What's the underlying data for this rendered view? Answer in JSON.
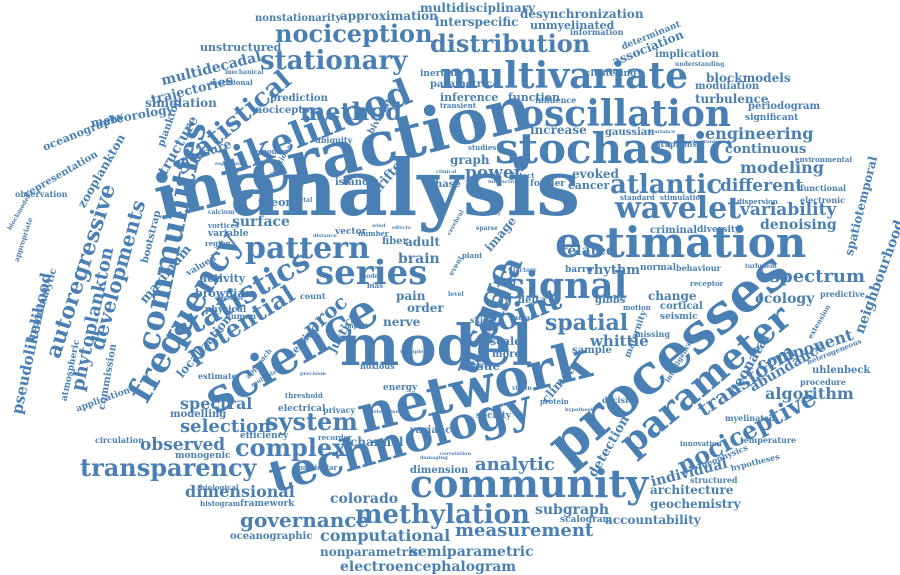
{
  "color": "#4a7fb3",
  "words": [
    {
      "id": "analysis",
      "text": "analysis"
    },
    {
      "id": "interaction",
      "text": "interaction"
    },
    {
      "id": "model",
      "text": "model"
    },
    {
      "id": "network",
      "text": "network"
    },
    {
      "id": "processes",
      "text": "processes"
    },
    {
      "id": "estimation",
      "text": "estimation"
    },
    {
      "id": "stochastic",
      "text": "stochastic"
    },
    {
      "id": "science",
      "text": "science"
    },
    {
      "id": "technology",
      "text": "technology"
    },
    {
      "id": "community",
      "text": "community"
    },
    {
      "id": "multivariate",
      "text": "multivariate"
    },
    {
      "id": "oscillation",
      "text": "oscillation"
    },
    {
      "id": "likelihood",
      "text": "likelihood"
    },
    {
      "id": "frequency",
      "text": "frequency"
    },
    {
      "id": "communities",
      "text": "communities"
    },
    {
      "id": "parameter",
      "text": "parameter"
    },
    {
      "id": "signal",
      "text": "signal"
    },
    {
      "id": "series",
      "text": "series"
    },
    {
      "id": "usage",
      "text": "usage"
    },
    {
      "id": "data",
      "text": "data"
    },
    {
      "id": "point",
      "text": "point"
    },
    {
      "id": "wavelet",
      "text": "wavelet"
    },
    {
      "id": "atlantic",
      "text": "atlantic"
    },
    {
      "id": "pattern",
      "text": "pattern"
    },
    {
      "id": "statistical",
      "text": "statistical"
    },
    {
      "id": "statistics",
      "text": "statistics"
    },
    {
      "id": "potential",
      "text": "potential"
    },
    {
      "id": "nociception",
      "text": "nociception"
    },
    {
      "id": "distribution",
      "text": "distribution"
    },
    {
      "id": "stationary",
      "text": "stationary"
    },
    {
      "id": "method",
      "text": "method"
    },
    {
      "id": "methylation",
      "text": "methylation"
    },
    {
      "id": "transparency",
      "text": "transparency"
    },
    {
      "id": "complex",
      "text": "complex"
    },
    {
      "id": "system",
      "text": "system"
    },
    {
      "id": "governance",
      "text": "governance"
    },
    {
      "id": "measurement",
      "text": "measurement"
    },
    {
      "id": "nociceptive",
      "text": "nociceptive"
    },
    {
      "id": "transform",
      "text": "transform"
    },
    {
      "id": "spatial",
      "text": "spatial"
    },
    {
      "id": "spectrum",
      "text": "spectrum"
    },
    {
      "id": "variability",
      "text": "variability"
    },
    {
      "id": "different",
      "text": "different"
    },
    {
      "id": "modeling",
      "text": "modeling"
    },
    {
      "id": "engineering",
      "text": "engineering"
    },
    {
      "id": "algorithm",
      "text": "algorithm"
    },
    {
      "id": "analytic",
      "text": "analytic"
    },
    {
      "id": "autoregressive",
      "text": "autoregressive"
    },
    {
      "id": "developments",
      "text": "developments"
    },
    {
      "id": "phytoplankton",
      "text": "phytoplankton"
    },
    {
      "id": "pseudolikelihood",
      "text": "pseudolikelihood"
    },
    {
      "id": "selection",
      "text": "selection"
    },
    {
      "id": "observed",
      "text": "observed"
    },
    {
      "id": "spectral",
      "text": "spectral"
    },
    {
      "id": "dimensional",
      "text": "dimensional"
    },
    {
      "id": "computational",
      "text": "computational"
    },
    {
      "id": "semiparametric",
      "text": "semiparametric"
    },
    {
      "id": "nonparametric",
      "text": "nonparametric"
    },
    {
      "id": "electroencephalogram",
      "text": "electroencephalogram"
    },
    {
      "id": "colorado",
      "text": "colorado"
    },
    {
      "id": "subgraph",
      "text": "subgraph"
    },
    {
      "id": "accountability",
      "text": "accountability"
    },
    {
      "id": "architecture",
      "text": "architecture"
    },
    {
      "id": "geochemistry",
      "text": "geochemistry"
    },
    {
      "id": "individual",
      "text": "individual"
    },
    {
      "id": "component",
      "text": "component"
    },
    {
      "id": "abundance",
      "text": "abundance"
    },
    {
      "id": "ecology",
      "text": "ecology"
    },
    {
      "id": "neighbourhood",
      "text": "neighbourhood"
    },
    {
      "id": "spatiotemporal",
      "text": "spatiotemporal"
    },
    {
      "id": "denoising",
      "text": "denoising"
    },
    {
      "id": "continuous",
      "text": "continuous"
    },
    {
      "id": "blockmodels",
      "text": "blockmodels"
    },
    {
      "id": "periodogram",
      "text": "periodogram"
    },
    {
      "id": "turbulence",
      "text": "turbulence"
    },
    {
      "id": "modulation",
      "text": "modulation"
    },
    {
      "id": "implication",
      "text": "implication"
    },
    {
      "id": "association",
      "text": "association"
    },
    {
      "id": "desynchronization",
      "text": "desynchronization"
    },
    {
      "id": "multidisciplinary",
      "text": "multidisciplinary"
    },
    {
      "id": "approximation",
      "text": "approximation"
    },
    {
      "id": "nonstationarity",
      "text": "nonstationarity"
    },
    {
      "id": "interspecific",
      "text": "interspecific"
    },
    {
      "id": "unmyelinated",
      "text": "unmyelinated"
    },
    {
      "id": "unstructured",
      "text": "unstructured"
    },
    {
      "id": "multidecadal",
      "text": "multidecadal"
    },
    {
      "id": "trajectories",
      "text": "trajectories"
    },
    {
      "id": "simulation",
      "text": "simulation"
    },
    {
      "id": "structure",
      "text": "structure"
    },
    {
      "id": "meteorology",
      "text": "meteorology"
    },
    {
      "id": "oceanography",
      "text": "oceanography"
    },
    {
      "id": "zooplankton",
      "text": "zooplankton"
    },
    {
      "id": "representation",
      "text": "representation"
    },
    {
      "id": "maximum",
      "text": "maximum"
    },
    {
      "id": "localization",
      "text": "localization"
    },
    {
      "id": "activity",
      "text": "activity"
    },
    {
      "id": "brownian",
      "text": "brownian"
    },
    {
      "id": "bootstrap",
      "text": "bootstrap"
    },
    {
      "id": "commission",
      "text": "commission"
    },
    {
      "id": "hyperanalytic",
      "text": "hyperanalytic"
    },
    {
      "id": "atmospheric",
      "text": "atmospheric"
    },
    {
      "id": "application",
      "text": "application"
    },
    {
      "id": "circulation",
      "text": "circulation"
    },
    {
      "id": "monogenic",
      "text": "monogenic"
    },
    {
      "id": "modelling",
      "text": "modelling"
    },
    {
      "id": "efficiency",
      "text": "efficiency"
    },
    {
      "id": "oceanographic",
      "text": "oceanographic"
    },
    {
      "id": "framework",
      "text": "framework"
    },
    {
      "id": "histogram",
      "text": "histogram"
    },
    {
      "id": "biological",
      "text": "biological"
    },
    {
      "id": "channel",
      "text": "channel"
    },
    {
      "id": "dimension",
      "text": "dimension"
    },
    {
      "id": "scalogram",
      "text": "scalogram"
    },
    {
      "id": "variance",
      "text": "variance"
    },
    {
      "id": "society",
      "text": "society"
    },
    {
      "id": "hypotheses",
      "text": "hypotheses"
    },
    {
      "id": "geophysics",
      "text": "geophysics"
    },
    {
      "id": "structured",
      "text": "structured"
    },
    {
      "id": "temperature",
      "text": "temperature"
    },
    {
      "id": "innovation",
      "text": "innovation"
    },
    {
      "id": "myelinated",
      "text": "myelinated"
    },
    {
      "id": "uhlenbeck",
      "text": "uhlenbeck"
    },
    {
      "id": "procedure",
      "text": "procedure"
    },
    {
      "id": "heterogeneous",
      "text": "heterogeneous"
    },
    {
      "id": "extension",
      "text": "extension"
    },
    {
      "id": "predictive",
      "text": "predictive"
    },
    {
      "id": "neonatal",
      "text": "neonatal"
    },
    {
      "id": "detection",
      "text": "detection"
    },
    {
      "id": "criminal",
      "text": "criminal"
    },
    {
      "id": "diversity",
      "text": "diversity"
    },
    {
      "id": "functional",
      "text": "functional"
    },
    {
      "id": "electronic",
      "text": "electronic"
    },
    {
      "id": "environmental",
      "text": "environmental"
    },
    {
      "id": "significant",
      "text": "significant"
    },
    {
      "id": "influence",
      "text": "influence"
    },
    {
      "id": "graphons",
      "text": "graphons"
    },
    {
      "id": "gaussian",
      "text": "gaussian"
    },
    {
      "id": "increase",
      "text": "increase"
    },
    {
      "id": "function",
      "text": "function"
    },
    {
      "id": "inference",
      "text": "inference"
    },
    {
      "id": "evoked",
      "text": "evoked"
    },
    {
      "id": "cancer",
      "text": "cancer"
    },
    {
      "id": "fourier",
      "text": "fourier"
    },
    {
      "id": "power",
      "text": "power"
    },
    {
      "id": "drifter",
      "text": "drifter"
    },
    {
      "id": "island",
      "text": "island"
    },
    {
      "id": "phase",
      "text": "phase"
    },
    {
      "id": "graph",
      "text": "graph"
    },
    {
      "id": "brain",
      "text": "brain"
    },
    {
      "id": "adult",
      "text": "adult"
    },
    {
      "id": "fiber",
      "text": "fiber"
    },
    {
      "id": "related",
      "text": "related"
    },
    {
      "id": "rhythm",
      "text": "rhythm"
    },
    {
      "id": "barro",
      "text": "barro"
    },
    {
      "id": "normal",
      "text": "normal"
    },
    {
      "id": "behaviour",
      "text": "behaviour"
    },
    {
      "id": "change",
      "text": "change"
    },
    {
      "id": "cortical",
      "text": "cortical"
    },
    {
      "id": "seismic",
      "text": "seismic"
    },
    {
      "id": "whittle",
      "text": "whittle"
    },
    {
      "id": "sample",
      "text": "sample"
    },
    {
      "id": "maternity",
      "text": "maternity"
    },
    {
      "id": "tissue",
      "text": "tissue"
    },
    {
      "id": "climate",
      "text": "climate"
    },
    {
      "id": "scale",
      "text": "scale"
    },
    {
      "id": "more",
      "text": "more"
    },
    {
      "id": "delta",
      "text": "delta"
    },
    {
      "id": "gibbs",
      "text": "gibbs"
    },
    {
      "id": "nerve",
      "text": "nerve"
    },
    {
      "id": "order",
      "text": "order"
    },
    {
      "id": "pain",
      "text": "pain"
    },
    {
      "id": "justice",
      "text": "justice"
    },
    {
      "id": "testing",
      "text": "testing"
    },
    {
      "id": "surface",
      "text": "surface"
    },
    {
      "id": "theory",
      "text": "theory"
    },
    {
      "id": "count",
      "text": "count"
    },
    {
      "id": "human",
      "text": "human"
    },
    {
      "id": "measure",
      "text": "measure"
    },
    {
      "id": "proc",
      "text": "proc"
    },
    {
      "id": "image",
      "text": "image"
    },
    {
      "id": "nociceptor",
      "text": "nociceptor"
    },
    {
      "id": "prediction",
      "text": "prediction"
    },
    {
      "id": "inertial",
      "text": "inertial"
    },
    {
      "id": "bivariate",
      "text": "bivariate"
    },
    {
      "id": "ubiquity",
      "text": "ubiquity"
    },
    {
      "id": "plankton",
      "text": "plankton"
    },
    {
      "id": "physical",
      "text": "physical"
    },
    {
      "id": "variable",
      "text": "variable"
    },
    {
      "id": "valued",
      "text": "valued"
    },
    {
      "id": "estimate",
      "text": "estimate"
    },
    {
      "id": "region",
      "text": "region"
    },
    {
      "id": "vortices",
      "text": "vortices"
    },
    {
      "id": "parametric",
      "text": "parametric"
    },
    {
      "id": "clustering",
      "text": "clustering"
    },
    {
      "id": "determinant",
      "text": "determinant"
    },
    {
      "id": "information",
      "text": "information"
    },
    {
      "id": "transient",
      "text": "transient"
    },
    {
      "id": "understanding",
      "text": "understanding"
    },
    {
      "id": "stimulation",
      "text": "stimulation"
    },
    {
      "id": "standard",
      "text": "standard"
    },
    {
      "id": "dispersion",
      "text": "dispersion"
    },
    {
      "id": "turbulent",
      "text": "turbulent"
    },
    {
      "id": "receptor",
      "text": "receptor"
    },
    {
      "id": "motion",
      "text": "motion"
    },
    {
      "id": "missing",
      "text": "missing"
    },
    {
      "id": "intelligence",
      "text": "intelligence"
    },
    {
      "id": "decision",
      "text": "decision"
    },
    {
      "id": "protein",
      "text": "protein"
    },
    {
      "id": "recorder",
      "text": "recorder"
    },
    {
      "id": "privacy",
      "text": "privacy"
    },
    {
      "id": "electrical",
      "text": "electrical"
    },
    {
      "id": "threshold",
      "text": "threshold"
    },
    {
      "id": "energy",
      "text": "energy"
    },
    {
      "id": "noxious",
      "text": "noxious"
    },
    {
      "id": "particular",
      "text": "particular"
    },
    {
      "id": "mechanical",
      "text": "mechanical"
    },
    {
      "id": "meridional",
      "text": "meridional"
    },
    {
      "id": "observation",
      "text": "observation"
    },
    {
      "id": "appropriate",
      "text": "appropriate"
    },
    {
      "id": "blockmodel",
      "text": "blockmodel"
    },
    {
      "id": "fractional",
      "text": "fractional"
    },
    {
      "id": "response",
      "text": "response"
    },
    {
      "id": "female",
      "text": "female"
    },
    {
      "id": "calcium",
      "text": "calcium"
    },
    {
      "id": "fractal",
      "text": "fractal"
    },
    {
      "id": "vector",
      "text": "vector"
    },
    {
      "id": "number",
      "text": "number"
    },
    {
      "id": "studies",
      "text": "studies"
    },
    {
      "id": "detect",
      "text": "detect"
    },
    {
      "id": "skin",
      "text": "skin"
    },
    {
      "id": "infant",
      "text": "infant"
    },
    {
      "id": "radial",
      "text": "radial"
    },
    {
      "id": "sparse",
      "text": "sparse"
    },
    {
      "id": "expression",
      "text": "expression"
    },
    {
      "id": "operator",
      "text": "operator"
    },
    {
      "id": "impact",
      "text": "impact"
    },
    {
      "id": "bias",
      "text": "bias"
    },
    {
      "id": "correlation",
      "text": "correlation"
    },
    {
      "id": "damaging",
      "text": "damaging"
    },
    {
      "id": "artificial",
      "text": "artificial"
    },
    {
      "id": "hypothesis",
      "text": "hypothesis"
    },
    {
      "id": "vision",
      "text": "vision"
    },
    {
      "id": "covariance",
      "text": "covariance"
    },
    {
      "id": "clinical",
      "text": "clinical"
    },
    {
      "id": "interactive",
      "text": "interactive"
    },
    {
      "id": "healthy",
      "text": "healthy"
    },
    {
      "id": "factory",
      "text": "factory"
    },
    {
      "id": "level",
      "text": "level"
    },
    {
      "id": "distance",
      "text": "distance"
    },
    {
      "id": "wind",
      "text": "wind"
    },
    {
      "id": "effects",
      "text": "effects"
    },
    {
      "id": "cerebral",
      "text": "cerebral"
    },
    {
      "id": "plant",
      "text": "plant"
    },
    {
      "id": "event",
      "text": "event"
    },
    {
      "id": "model2",
      "text": "model"
    },
    {
      "id": "multiple",
      "text": "multiple"
    },
    {
      "id": "determined",
      "text": "determined"
    },
    {
      "id": "precision",
      "text": "precision"
    },
    {
      "id": "approach",
      "text": "approach"
    },
    {
      "id": "example",
      "text": "example"
    },
    {
      "id": "electronics",
      "text": "electronics"
    }
  ]
}
